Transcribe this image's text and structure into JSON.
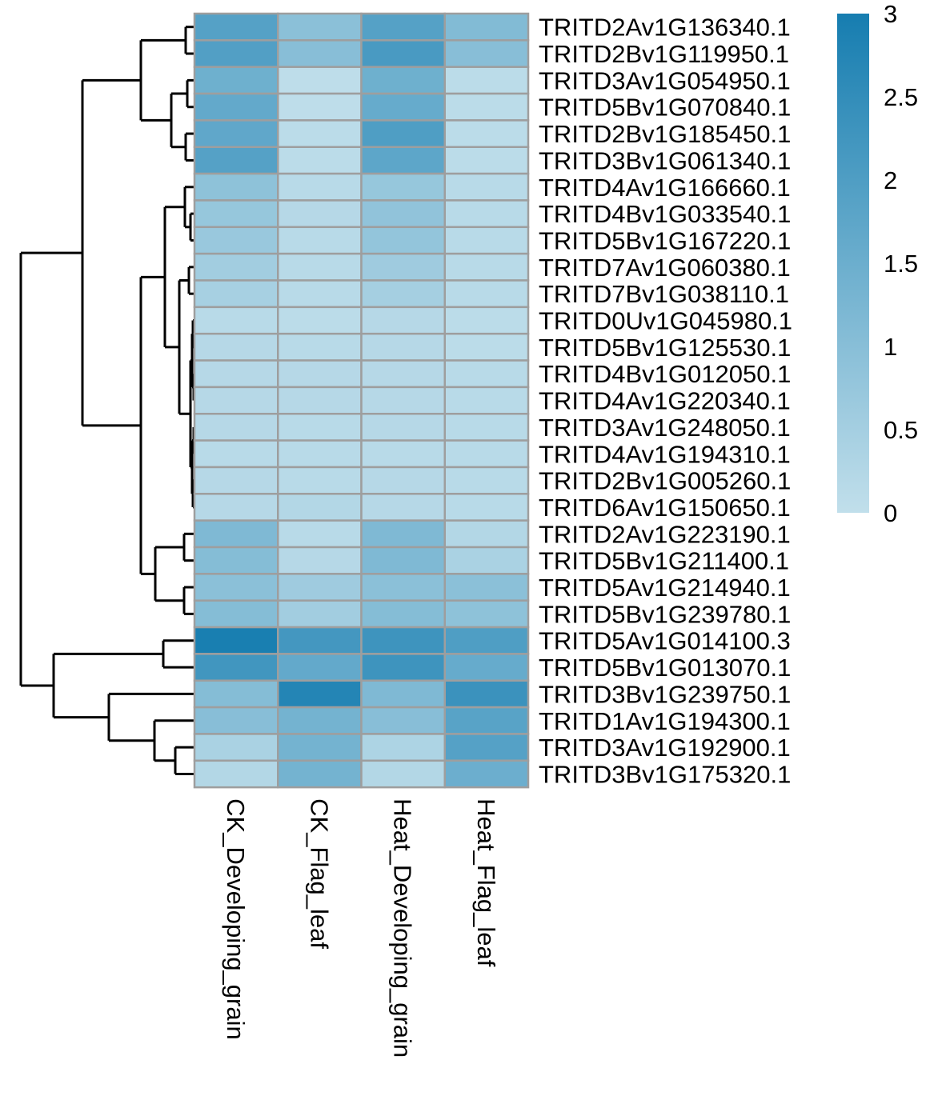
{
  "chart_data": {
    "type": "heatmap",
    "title": "",
    "columns": [
      "CK_Developing_grain",
      "CK_Flag_leaf",
      "Heat_Developing_grain",
      "Heat_Flag_leaf"
    ],
    "rows": [
      "TRITD2Av1G136340.1",
      "TRITD2Bv1G119950.1",
      "TRITD3Av1G054950.1",
      "TRITD5Bv1G070840.1",
      "TRITD2Bv1G185450.1",
      "TRITD3Bv1G061340.1",
      "TRITD4Av1G166660.1",
      "TRITD4Bv1G033540.1",
      "TRITD5Bv1G167220.1",
      "TRITD7Av1G060380.1",
      "TRITD7Bv1G038110.1",
      "TRITD0Uv1G045980.1",
      "TRITD5Bv1G125530.1",
      "TRITD4Bv1G012050.1",
      "TRITD4Av1G220340.1",
      "TRITD3Av1G248050.1",
      "TRITD4Av1G194310.1",
      "TRITD2Bv1G005260.1",
      "TRITD6Av1G150650.1",
      "TRITD2Av1G223190.1",
      "TRITD5Bv1G211400.1",
      "TRITD5Av1G214940.1",
      "TRITD5Bv1G239780.1",
      "TRITD5Av1G014100.3",
      "TRITD5Bv1G013070.1",
      "TRITD3Bv1G239750.1",
      "TRITD1Av1G194300.1",
      "TRITD3Av1G192900.1",
      "TRITD3Bv1G175320.1"
    ],
    "values": [
      [
        1.9,
        0.95,
        1.9,
        1.1
      ],
      [
        1.95,
        1.0,
        2.1,
        1.0
      ],
      [
        1.45,
        0.05,
        1.45,
        0.1
      ],
      [
        1.65,
        0.05,
        1.6,
        0.1
      ],
      [
        1.7,
        0.1,
        2.0,
        0.1
      ],
      [
        1.9,
        0.1,
        1.75,
        0.1
      ],
      [
        0.9,
        0.15,
        0.75,
        0.15
      ],
      [
        0.75,
        0.2,
        0.85,
        0.15
      ],
      [
        0.7,
        0.15,
        0.8,
        0.15
      ],
      [
        0.55,
        0.15,
        0.6,
        0.15
      ],
      [
        0.45,
        0.15,
        0.5,
        0.15
      ],
      [
        0.15,
        0.1,
        0.2,
        0.1
      ],
      [
        0.2,
        0.15,
        0.2,
        0.1
      ],
      [
        0.2,
        0.2,
        0.2,
        0.15
      ],
      [
        0.2,
        0.2,
        0.2,
        0.15
      ],
      [
        0.2,
        0.15,
        0.2,
        0.15
      ],
      [
        0.15,
        0.15,
        0.15,
        0.15
      ],
      [
        0.2,
        0.15,
        0.2,
        0.15
      ],
      [
        0.2,
        0.25,
        0.2,
        0.15
      ],
      [
        1.15,
        0.15,
        1.15,
        0.25
      ],
      [
        1.05,
        0.2,
        1.15,
        0.4
      ],
      [
        0.95,
        0.6,
        0.95,
        0.95
      ],
      [
        1.05,
        0.55,
        1.05,
        0.9
      ],
      [
        2.95,
        2.2,
        2.3,
        2.0
      ],
      [
        2.25,
        1.65,
        2.3,
        1.6
      ],
      [
        1.05,
        2.75,
        1.15,
        2.35
      ],
      [
        1.0,
        1.35,
        1.0,
        1.85
      ],
      [
        0.4,
        1.35,
        0.35,
        1.9
      ],
      [
        0.25,
        1.35,
        0.25,
        1.5
      ]
    ],
    "legend": {
      "ticks": [
        "3",
        "2.5",
        "2",
        "1.5",
        "1",
        "0.5",
        "0"
      ],
      "range": [
        0,
        3
      ],
      "color_low": "#c1dfeb",
      "color_high": "#167db0",
      "placement": "right"
    },
    "row_dendrogram_order_groups": [
      [
        0,
        1
      ],
      [
        2,
        3
      ],
      [
        4,
        5
      ],
      [
        6,
        7,
        8,
        9,
        10,
        11,
        12,
        13,
        14,
        15,
        16,
        17,
        18
      ],
      [
        19,
        20,
        21,
        22
      ],
      [
        23,
        24
      ],
      [
        25,
        26,
        27,
        28
      ]
    ],
    "cell_border_color": "#9e9e9e",
    "dendrogram_color": "#000000",
    "grid": false
  }
}
